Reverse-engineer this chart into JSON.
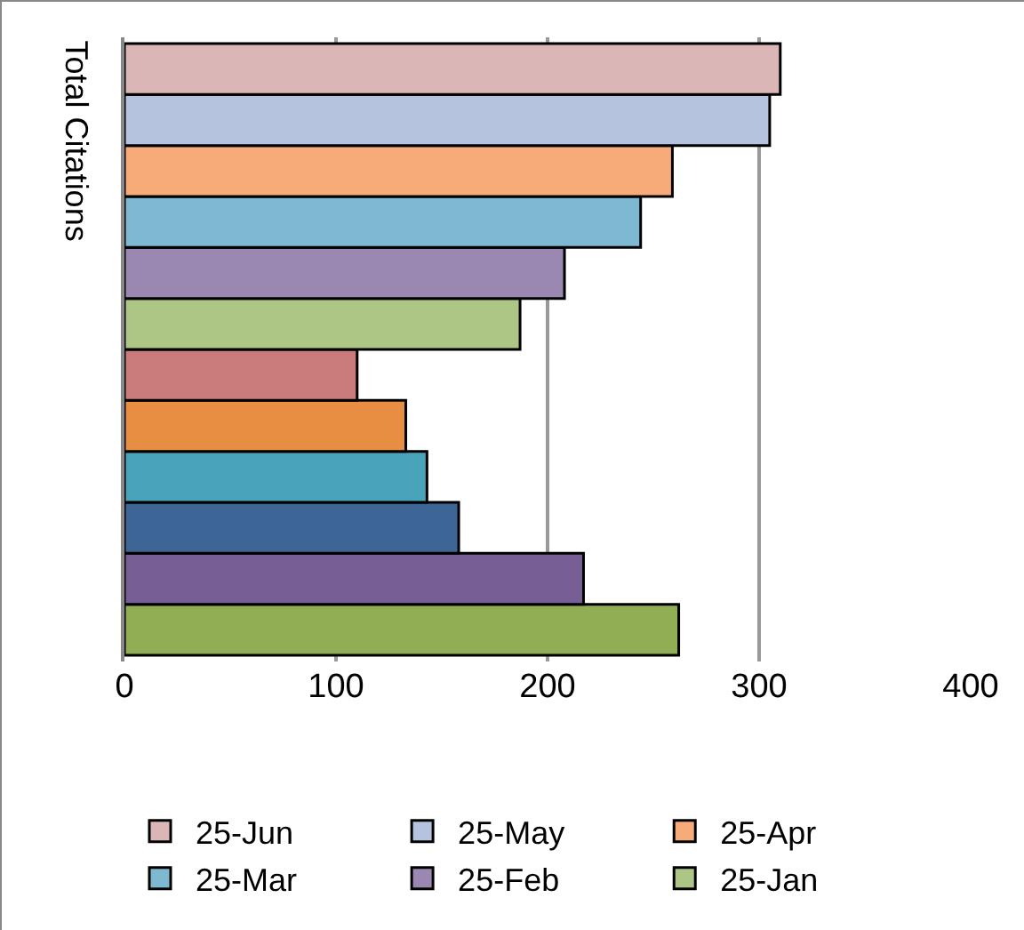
{
  "chart_data": {
    "type": "bar",
    "orientation": "horizontal",
    "ylabel": "Total Citations",
    "categories": [
      null
    ],
    "xlim": [
      0,
      400
    ],
    "xticks": [
      0,
      100,
      200,
      300,
      400
    ],
    "grid": "x",
    "legend": "bottom",
    "series": [
      {
        "color": "#91ae55",
        "values": [
          262
        ]
      },
      {
        "color": "#775e95",
        "values": [
          217
        ]
      },
      {
        "color": "#3d6697",
        "values": [
          158
        ]
      },
      {
        "color": "#48a3bb",
        "values": [
          143
        ]
      },
      {
        "color": "#e88e42",
        "values": [
          133
        ]
      },
      {
        "color": "#c97c7b",
        "values": [
          110
        ]
      },
      {
        "name": "25-Jan",
        "color": "#adc585",
        "values": [
          187
        ]
      },
      {
        "name": "25-Feb",
        "color": "#9b88b2",
        "values": [
          208
        ]
      },
      {
        "name": "25-Mar",
        "color": "#7db9d0",
        "values": [
          244
        ]
      },
      {
        "name": "25-Apr",
        "color": "#f7ab79",
        "values": [
          259
        ]
      },
      {
        "name": "25-May",
        "color": "#b5c3de",
        "values": [
          305
        ]
      },
      {
        "name": "25-Jun",
        "color": "#dbb6b6",
        "values": [
          310
        ]
      }
    ]
  }
}
